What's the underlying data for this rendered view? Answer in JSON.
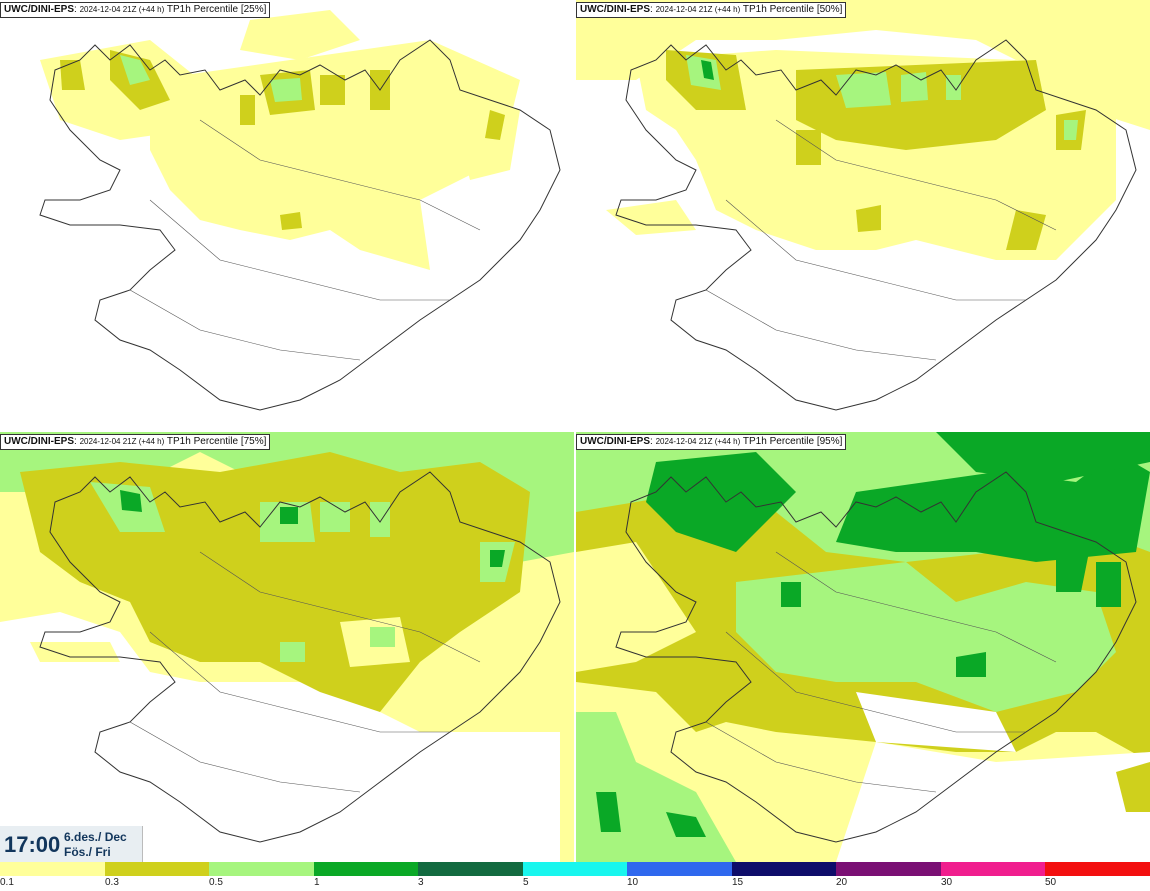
{
  "panels": [
    {
      "model": "UWC/DINI-EPS",
      "date": "2024-12-04 21Z (+44 h)",
      "product": "TP1h Percentile [25%]"
    },
    {
      "model": "UWC/DINI-EPS",
      "date": "2024-12-04 21Z (+44 h)",
      "product": "TP1h Percentile [50%]"
    },
    {
      "model": "UWC/DINI-EPS",
      "date": "2024-12-04 21Z (+44 h)",
      "product": "TP1h Percentile [75%]"
    },
    {
      "model": "UWC/DINI-EPS",
      "date": "2024-12-04 21Z (+44 h)",
      "product": "TP1h Percentile [95%]"
    }
  ],
  "valid_time": {
    "time": "17:00",
    "date_line": "6.des./ Dec",
    "day_line": "Fös./ Fri"
  },
  "legend": {
    "bins": [
      {
        "label": "0.1",
        "color": "#ffff9a"
      },
      {
        "label": "0.3",
        "color": "#cfd01c"
      },
      {
        "label": "0.5",
        "color": "#a6f57e"
      },
      {
        "label": "1",
        "color": "#0aa826"
      },
      {
        "label": "3",
        "color": "#126a40"
      },
      {
        "label": "5",
        "color": "#18f6ee"
      },
      {
        "label": "10",
        "color": "#2f68ee"
      },
      {
        "label": "15",
        "color": "#0e0d6a"
      },
      {
        "label": "20",
        "color": "#7a0f74"
      },
      {
        "label": "30",
        "color": "#f01e8e"
      },
      {
        "label": "50",
        "color": "#f30f0f"
      }
    ]
  },
  "colors": {
    "light_yellow": "#ffff9a",
    "olive": "#cfd01c",
    "light_green": "#a6f57e",
    "green": "#0aa826",
    "dark_green": "#126a40"
  }
}
